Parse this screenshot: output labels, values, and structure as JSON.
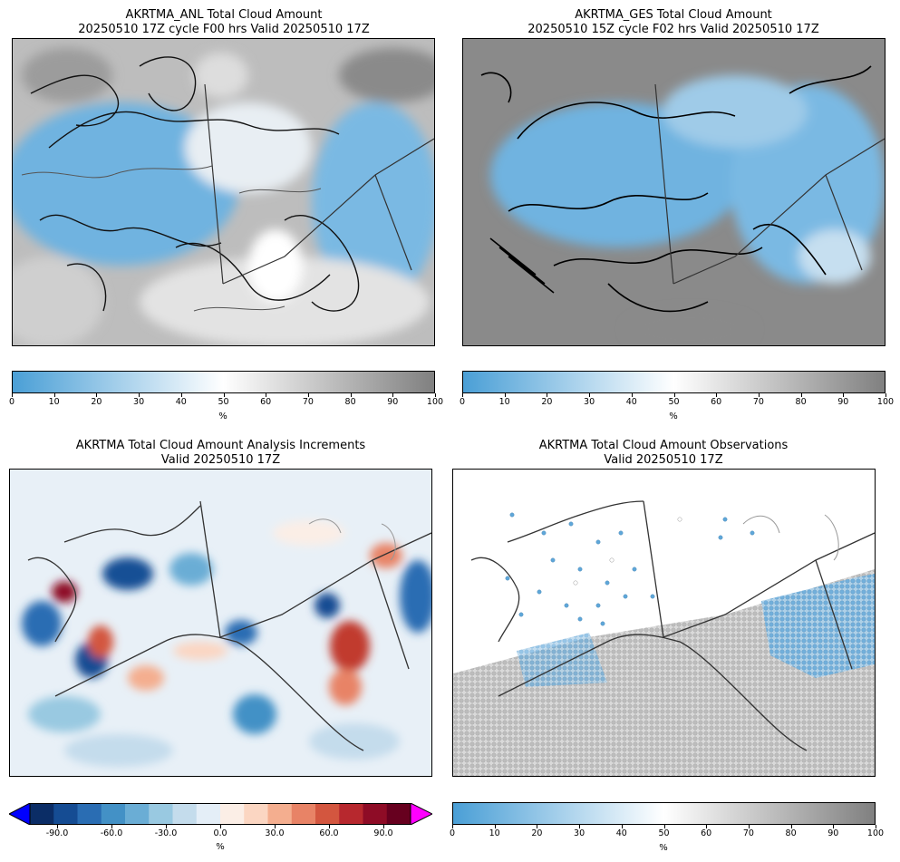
{
  "panels": {
    "anl": {
      "title_line1": "AKRTMA_ANL Total Cloud Amount",
      "title_line2": "20250510 17Z cycle F00 hrs Valid 20250510 17Z"
    },
    "ges": {
      "title_line1": "AKRTMA_GES Total Cloud Amount",
      "title_line2": "20250510 15Z cycle F02 hrs Valid 20250510 17Z"
    },
    "inc": {
      "title_line1": "AKRTMA Total Cloud Amount Analysis Increments",
      "title_line2": "Valid 20250510 17Z"
    },
    "obs": {
      "title_line1": "AKRTMA Total Cloud Amount Observations",
      "title_line2": "Valid 20250510 17Z"
    }
  },
  "colorbars": {
    "cloud": {
      "ticks": [
        "0",
        "10",
        "20",
        "30",
        "40",
        "50",
        "60",
        "70",
        "80",
        "90",
        "100"
      ],
      "unit": "%",
      "colors": [
        "#4a9fd6",
        "#ffffff",
        "#808080"
      ]
    },
    "increment": {
      "ticks": [
        "-90.0",
        "-60.0",
        "-30.0",
        "0.0",
        "30.0",
        "60.0",
        "90.0"
      ],
      "unit": "%",
      "under_color": "#0000ff",
      "over_color": "#ff00ff",
      "colors": [
        "#0b2d66",
        "#154c93",
        "#2a6db3",
        "#4391c6",
        "#6aadd5",
        "#99c9e1",
        "#c4dcec",
        "#e4eef7",
        "#fbeee6",
        "#fbd6c2",
        "#f4ae8f",
        "#e88366",
        "#d3563f",
        "#b7282e",
        "#8e0c26",
        "#67001f"
      ]
    }
  }
}
